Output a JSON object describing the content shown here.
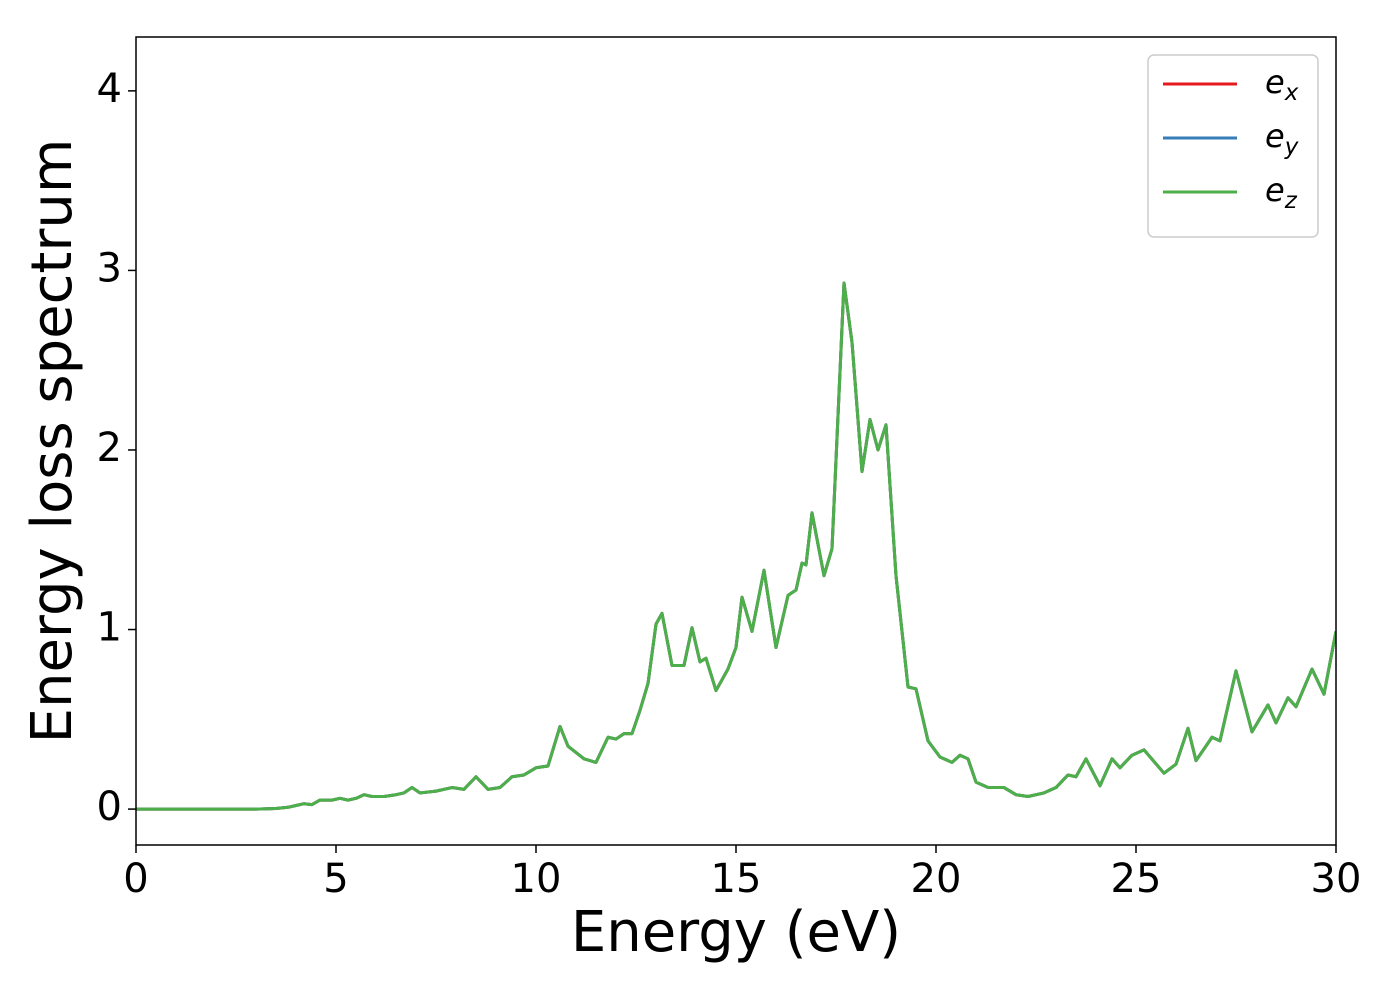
{
  "chart_data": {
    "type": "line",
    "xlabel": "Energy (eV)",
    "ylabel": "Energy loss spectrum",
    "xlim": [
      0,
      30
    ],
    "ylim": [
      -0.2,
      4.3
    ],
    "xticks": [
      0,
      5,
      10,
      15,
      20,
      25,
      30
    ],
    "yticks": [
      0,
      1,
      2,
      3,
      4
    ],
    "grid": false,
    "legend": "upper right",
    "x": [
      0,
      1,
      2,
      3,
      3.5,
      3.8,
      4,
      4.2,
      4.4,
      4.6,
      4.9,
      5.1,
      5.3,
      5.5,
      5.7,
      5.9,
      6.2,
      6.5,
      6.7,
      6.9,
      7.1,
      7.5,
      7.9,
      8.2,
      8.5,
      8.8,
      9.1,
      9.4,
      9.7,
      10,
      10.3,
      10.6,
      10.8,
      11.2,
      11.5,
      11.8,
      12,
      12.2,
      12.4,
      12.6,
      12.8,
      13,
      13.15,
      13.4,
      13.7,
      13.9,
      14.1,
      14.25,
      14.5,
      14.8,
      15,
      15.15,
      15.4,
      15.7,
      16,
      16.3,
      16.5,
      16.65,
      16.75,
      16.9,
      17.2,
      17.4,
      17.7,
      17.9,
      18.15,
      18.35,
      18.55,
      18.75,
      19,
      19.3,
      19.5,
      19.8,
      20.1,
      20.4,
      20.6,
      20.8,
      21,
      21.3,
      21.7,
      22,
      22.3,
      22.7,
      23,
      23.3,
      23.5,
      23.75,
      24.1,
      24.4,
      24.6,
      24.9,
      25.2,
      25.7,
      26,
      26.3,
      26.5,
      26.9,
      27.1,
      27.5,
      27.9,
      28.3,
      28.5,
      28.8,
      29,
      29.4,
      29.7,
      30
    ],
    "series": [
      {
        "name": "e_x",
        "color": "#e41a1c",
        "values": [
          0,
          0,
          0,
          0,
          0.003,
          0.01,
          0.02,
          0.03,
          0.025,
          0.05,
          0.05,
          0.06,
          0.05,
          0.06,
          0.08,
          0.07,
          0.07,
          0.08,
          0.09,
          0.12,
          0.09,
          0.1,
          0.12,
          0.11,
          0.18,
          0.11,
          0.12,
          0.18,
          0.19,
          0.23,
          0.24,
          0.46,
          0.35,
          0.28,
          0.26,
          0.4,
          0.39,
          0.42,
          0.42,
          0.55,
          0.7,
          1.03,
          1.09,
          0.8,
          0.8,
          1.01,
          0.82,
          0.84,
          0.66,
          0.78,
          0.9,
          1.18,
          0.99,
          1.33,
          0.9,
          1.19,
          1.22,
          1.37,
          1.36,
          1.65,
          1.3,
          1.45,
          2.93,
          2.6,
          1.88,
          2.17,
          2.0,
          2.14,
          1.3,
          0.68,
          0.67,
          0.38,
          0.29,
          0.26,
          0.3,
          0.28,
          0.15,
          0.12,
          0.12,
          0.08,
          0.07,
          0.09,
          0.12,
          0.19,
          0.18,
          0.28,
          0.13,
          0.28,
          0.23,
          0.3,
          0.33,
          0.2,
          0.25,
          0.45,
          0.27,
          0.4,
          0.38,
          0.77,
          0.43,
          0.58,
          0.48,
          0.62,
          0.57,
          0.78,
          0.64,
          0.99
        ]
      },
      {
        "name": "e_y",
        "color": "#377eb8",
        "values": [
          0,
          0,
          0,
          0,
          0.003,
          0.01,
          0.02,
          0.03,
          0.025,
          0.05,
          0.05,
          0.06,
          0.05,
          0.06,
          0.08,
          0.07,
          0.07,
          0.08,
          0.09,
          0.12,
          0.09,
          0.1,
          0.12,
          0.11,
          0.18,
          0.11,
          0.12,
          0.18,
          0.19,
          0.23,
          0.24,
          0.46,
          0.35,
          0.28,
          0.26,
          0.4,
          0.39,
          0.42,
          0.42,
          0.55,
          0.7,
          1.03,
          1.09,
          0.8,
          0.8,
          1.01,
          0.82,
          0.84,
          0.66,
          0.78,
          0.9,
          1.18,
          0.99,
          1.33,
          0.9,
          1.19,
          1.22,
          1.37,
          1.36,
          1.65,
          1.3,
          1.45,
          2.93,
          2.6,
          1.88,
          2.17,
          2.0,
          2.14,
          1.3,
          0.68,
          0.67,
          0.38,
          0.29,
          0.26,
          0.3,
          0.28,
          0.15,
          0.12,
          0.12,
          0.08,
          0.07,
          0.09,
          0.12,
          0.19,
          0.18,
          0.28,
          0.13,
          0.28,
          0.23,
          0.3,
          0.33,
          0.2,
          0.25,
          0.45,
          0.27,
          0.4,
          0.38,
          0.77,
          0.43,
          0.58,
          0.48,
          0.62,
          0.57,
          0.78,
          0.64,
          0.99
        ]
      },
      {
        "name": "e_z",
        "color": "#4daf4a",
        "values": [
          0,
          0,
          0,
          0,
          0.003,
          0.01,
          0.02,
          0.03,
          0.025,
          0.05,
          0.05,
          0.06,
          0.05,
          0.06,
          0.08,
          0.07,
          0.07,
          0.08,
          0.09,
          0.12,
          0.09,
          0.1,
          0.12,
          0.11,
          0.18,
          0.11,
          0.12,
          0.18,
          0.19,
          0.23,
          0.24,
          0.46,
          0.35,
          0.28,
          0.26,
          0.4,
          0.39,
          0.42,
          0.42,
          0.55,
          0.7,
          1.03,
          1.09,
          0.8,
          0.8,
          1.01,
          0.82,
          0.84,
          0.66,
          0.78,
          0.9,
          1.18,
          0.99,
          1.33,
          0.9,
          1.19,
          1.22,
          1.37,
          1.36,
          1.65,
          1.3,
          1.45,
          2.93,
          2.6,
          1.88,
          2.17,
          2.0,
          2.14,
          1.3,
          0.68,
          0.67,
          0.38,
          0.29,
          0.26,
          0.3,
          0.28,
          0.15,
          0.12,
          0.12,
          0.08,
          0.07,
          0.09,
          0.12,
          0.19,
          0.18,
          0.28,
          0.13,
          0.28,
          0.23,
          0.3,
          0.33,
          0.2,
          0.25,
          0.45,
          0.27,
          0.4,
          0.38,
          0.77,
          0.43,
          0.58,
          0.48,
          0.62,
          0.57,
          0.78,
          0.64,
          0.99
        ]
      }
    ]
  }
}
